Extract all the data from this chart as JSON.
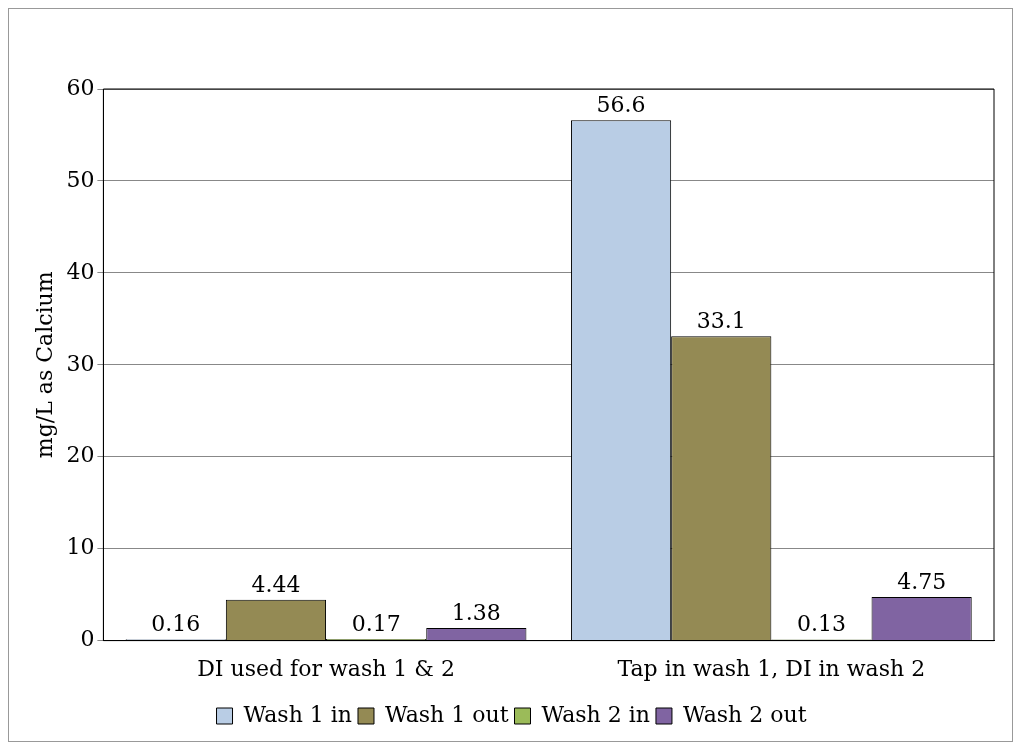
{
  "chart_data": {
    "type": "bar",
    "ylabel": "mg/L as Calcium",
    "categories": [
      "DI used for wash 1 & 2",
      "Tap in wash 1, DI in wash 2"
    ],
    "series": [
      {
        "name": "Wash 1 in",
        "color": "#b9cde5",
        "values": [
          0.16,
          56.6
        ]
      },
      {
        "name": "Wash 1 out",
        "color": "#948a54",
        "values": [
          4.44,
          33.1
        ]
      },
      {
        "name": "Wash 2 in",
        "color": "#9bbb59",
        "values": [
          0.17,
          0.13
        ]
      },
      {
        "name": "Wash 2 out",
        "color": "#8064a2",
        "values": [
          1.38,
          4.75
        ]
      }
    ],
    "ylim": [
      0,
      60
    ],
    "yticks": [
      0,
      10,
      20,
      30,
      40,
      50,
      60
    ],
    "grid": "y",
    "legend": "bottom",
    "data_labels": true
  }
}
